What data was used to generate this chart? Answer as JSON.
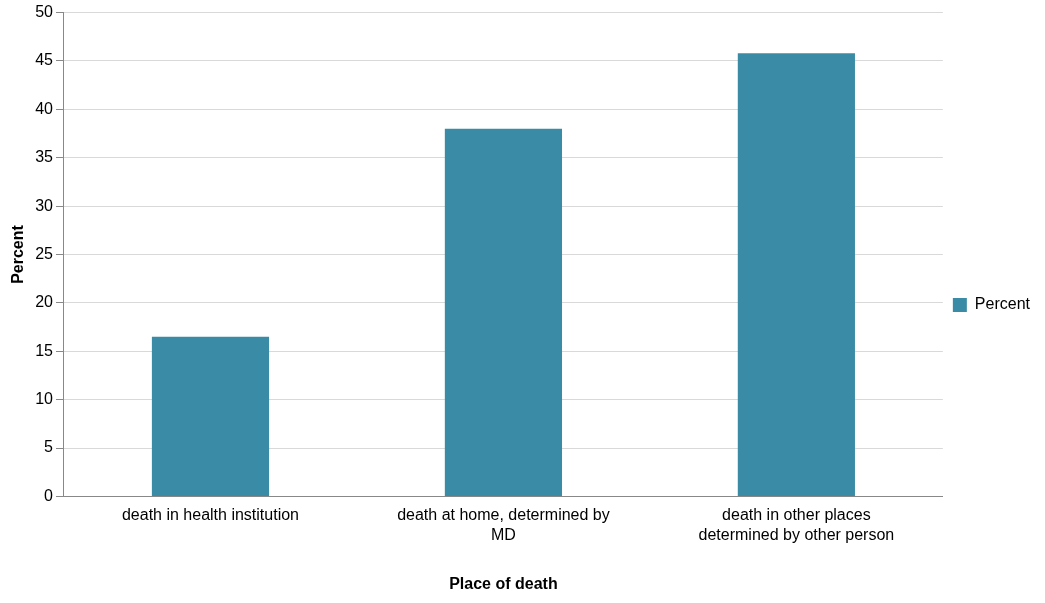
{
  "chart_data": {
    "type": "bar",
    "xlabel": "Place of death",
    "ylabel": "Percent",
    "categories": [
      "death in health institution",
      "death at home, determined by MD",
      "death in other places determined by other person"
    ],
    "series": [
      {
        "name": "Percent",
        "color": "#3a8ca6",
        "values": [
          16.5,
          38,
          45.8
        ]
      }
    ],
    "ylim": [
      0,
      50
    ],
    "yticks": [
      0,
      5,
      10,
      15,
      20,
      25,
      30,
      35,
      40,
      45,
      50
    ],
    "grid": "y",
    "legend": "right"
  }
}
